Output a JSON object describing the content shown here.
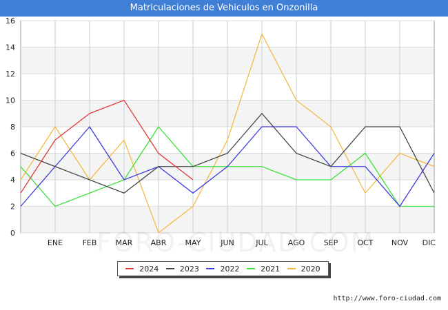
{
  "chart_data": {
    "type": "line",
    "title": "Matriculaciones de Vehiculos en Onzonilla",
    "categories": [
      "",
      "ENE",
      "FEB",
      "MAR",
      "ABR",
      "MAY",
      "JUN",
      "JUL",
      "AGO",
      "SEP",
      "OCT",
      "NOV",
      "DIC"
    ],
    "ylim": [
      0,
      16
    ],
    "yticks": [
      0,
      2,
      4,
      6,
      8,
      10,
      12,
      14,
      16
    ],
    "grid": true,
    "legend_position": "bottom",
    "series": [
      {
        "name": "2024",
        "color": "#e03b3b",
        "values": [
          3,
          7,
          9,
          10,
          6,
          4,
          null,
          null,
          null,
          null,
          null,
          null,
          null
        ]
      },
      {
        "name": "2023",
        "color": "#444444",
        "values": [
          6,
          5,
          4,
          3,
          5,
          5,
          6,
          9,
          6,
          5,
          8,
          8,
          3
        ]
      },
      {
        "name": "2022",
        "color": "#3b3be0",
        "values": [
          2,
          5,
          8,
          4,
          5,
          3,
          5,
          8,
          8,
          5,
          5,
          2,
          6
        ]
      },
      {
        "name": "2021",
        "color": "#3be03b",
        "values": [
          5,
          2,
          3,
          4,
          8,
          5,
          5,
          5,
          4,
          4,
          6,
          2,
          2
        ]
      },
      {
        "name": "2020",
        "color": "#f5b942",
        "values": [
          4,
          8,
          4,
          7,
          0,
          2,
          7,
          15,
          10,
          8,
          3,
          6,
          5
        ]
      }
    ]
  },
  "footer": {
    "url": "http://www.foro-ciudad.com"
  },
  "watermark": {
    "text": "FORO-CIUDAD.COM"
  }
}
